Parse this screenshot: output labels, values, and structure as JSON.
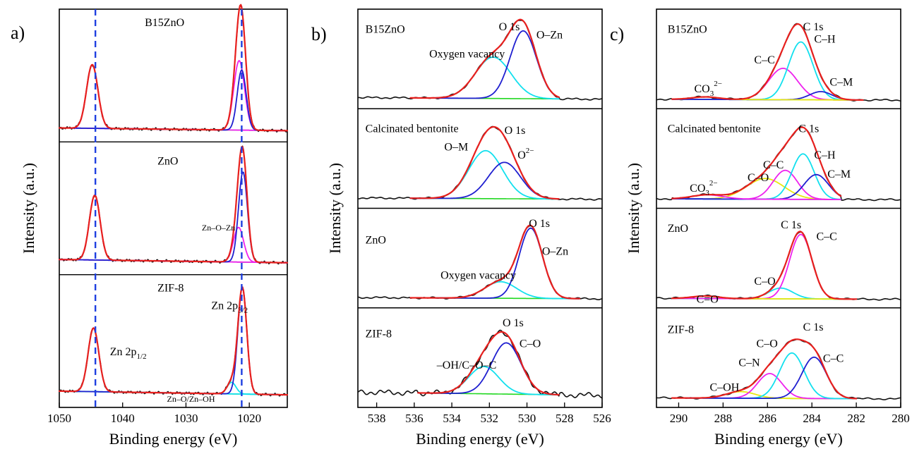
{
  "colors": {
    "red": "#e8201e",
    "blue": "#1f1fd0",
    "cyan": "#12e0ee",
    "green": "#22d822",
    "magenta": "#ee22ee",
    "yellow": "#e8e810",
    "black": "#111111",
    "dashed": "#1f3fe0"
  },
  "chart_data": [
    {
      "type": "line",
      "panel_label": "a)",
      "xlabel": "Binding energy (eV)",
      "ylabel": "Intensity (a.u.)",
      "xlim": [
        1050,
        1014
      ],
      "x_ticks": [
        "1050",
        "1040",
        "1030",
        "1020"
      ],
      "dashed_lines": [
        1044.3,
        1021.2
      ],
      "subplots": [
        {
          "name": "B15ZnO",
          "baseline": 0.06,
          "peaks": [
            {
              "color": "magenta",
              "center": 1044.8,
              "height": 0.55,
              "width": 0.9
            },
            {
              "color": "magenta",
              "center": 1021.6,
              "height": 0.6,
              "width": 0.85
            },
            {
              "color": "blue",
              "center": 1021.2,
              "height": 0.52,
              "width": 0.7
            }
          ],
          "annotations": [
            {
              "text": "B15ZnO",
              "x": 1036.5,
              "y": 1.0
            }
          ]
        },
        {
          "name": "ZnO",
          "baseline": 0.07,
          "peaks": [
            {
              "color": "magenta",
              "center": 1044.4,
              "height": 0.56,
              "width": 0.85
            },
            {
              "color": "magenta",
              "center": 1021.7,
              "height": 0.3,
              "width": 0.8
            },
            {
              "color": "blue",
              "center": 1021.0,
              "height": 0.78,
              "width": 0.7
            }
          ],
          "annotations": [
            {
              "text": "ZnO",
              "x": 1034.5,
              "y": 0.95
            },
            {
              "text": "Zn–O–Zn",
              "x": 1027.5,
              "y": 0.38
            }
          ]
        },
        {
          "name": "ZIF-8",
          "baseline": 0.08,
          "peaks": [
            {
              "color": "cyan",
              "center": 1044.6,
              "height": 0.55,
              "width": 0.85
            },
            {
              "color": "cyan",
              "center": 1022.8,
              "height": 0.1,
              "width": 0.7
            },
            {
              "color": "blue",
              "center": 1021.1,
              "height": 0.92,
              "width": 0.7
            }
          ],
          "annotations": [
            {
              "text": "ZIF-8",
              "x": 1034.5,
              "y": 1.0
            },
            {
              "text": "Zn 2p",
              "sub": "3/2",
              "x": 1026,
              "y": 0.85
            },
            {
              "text": "Zn 2p",
              "sub": "1/2",
              "x": 1042,
              "y": 0.45
            },
            {
              "text": "Zn–O/Zn–OH",
              "x": 1033,
              "y": 0.05
            }
          ]
        }
      ]
    },
    {
      "type": "line",
      "panel_label": "b)",
      "xlabel": "Binding energy (eV)",
      "ylabel": "Intensity (a.u.)",
      "xlim": [
        539,
        526
      ],
      "x_ticks": [
        "538",
        "536",
        "534",
        "532",
        "530",
        "528",
        "526"
      ],
      "subplots": [
        {
          "name": "B15ZnO",
          "baseline": 0.05,
          "range": [
            536.2,
            528.3
          ],
          "peaks": [
            {
              "color": "cyan",
              "center": 531.8,
              "height": 0.5,
              "width": 0.95
            },
            {
              "color": "blue",
              "center": 530.2,
              "height": 0.82,
              "width": 0.7
            }
          ],
          "annotations": [
            {
              "text": "B15ZnO",
              "x": 538.6,
              "y": 0.92
            },
            {
              "text": "O 1s",
              "x": 531.5,
              "y": 0.95
            },
            {
              "text": "O–Zn",
              "x": 529.5,
              "y": 0.85
            },
            {
              "text": "Oxygen vacancy",
              "x": 535.2,
              "y": 0.62
            }
          ]
        },
        {
          "name": "Calcinated bentonite",
          "baseline": 0.04,
          "range": [
            536.2,
            528.3
          ],
          "peaks": [
            {
              "color": "cyan",
              "center": 532.2,
              "height": 0.58,
              "width": 0.9
            },
            {
              "color": "blue",
              "center": 531.2,
              "height": 0.44,
              "width": 0.85
            }
          ],
          "annotations": [
            {
              "text": "Calcinated bentonite",
              "x": 538.6,
              "y": 0.92
            },
            {
              "text": "O 1s",
              "x": 531.2,
              "y": 0.9
            },
            {
              "text": "O–M",
              "x": 534.4,
              "y": 0.7
            },
            {
              "text": "O",
              "sup": "2−",
              "x": 530.5,
              "y": 0.6
            }
          ]
        },
        {
          "name": "ZnO",
          "baseline": 0.04,
          "range": [
            536.2,
            527.2
          ],
          "peaks": [
            {
              "color": "cyan",
              "center": 531.4,
              "height": 0.2,
              "width": 0.85
            },
            {
              "color": "blue",
              "center": 529.8,
              "height": 0.85,
              "width": 0.62
            }
          ],
          "annotations": [
            {
              "text": "ZnO",
              "x": 538.6,
              "y": 0.78
            },
            {
              "text": "O 1s",
              "x": 529.9,
              "y": 0.98
            },
            {
              "text": "O–Zn",
              "x": 529.2,
              "y": 0.64
            },
            {
              "text": "Oxygen vacancy",
              "x": 534.6,
              "y": 0.35
            }
          ]
        },
        {
          "name": "ZIF-8",
          "baseline": 0.1,
          "range": [
            535.8,
            528.3
          ],
          "peaks": [
            {
              "color": "cyan",
              "center": 532.3,
              "height": 0.33,
              "width": 0.8
            },
            {
              "color": "blue",
              "center": 531.1,
              "height": 0.62,
              "width": 0.78
            }
          ],
          "annotations": [
            {
              "text": "ZIF-8",
              "x": 538.6,
              "y": 0.85
            },
            {
              "text": "O 1s",
              "x": 531.3,
              "y": 0.98
            },
            {
              "text": "C–O",
              "x": 530.4,
              "y": 0.73
            },
            {
              "text": "–OH/C–O–C",
              "x": 534.8,
              "y": 0.47
            }
          ]
        }
      ]
    },
    {
      "type": "line",
      "panel_label": "c)",
      "xlabel": "Binding energy (eV)",
      "ylabel": "Intensity (a.u.)",
      "xlim": [
        291,
        280
      ],
      "x_ticks": [
        "290",
        "288",
        "286",
        "284",
        "282",
        "280"
      ],
      "subplots": [
        {
          "name": "B15ZnO",
          "baseline": 0.03,
          "range": [
            290.3,
            281.7
          ],
          "peaks": [
            {
              "color": "magenta",
              "center": 285.3,
              "height": 0.38,
              "width": 0.65
            },
            {
              "color": "cyan",
              "center": 284.5,
              "height": 0.7,
              "width": 0.55
            },
            {
              "color": "blue",
              "center": 283.6,
              "height": 0.1,
              "width": 0.5
            },
            {
              "color": "yellow",
              "center": 288.8,
              "height": 0.03,
              "width": 0.6
            }
          ],
          "annotations": [
            {
              "text": "B15ZnO",
              "x": 290.5,
              "y": 0.92
            },
            {
              "text": "C 1s",
              "x": 284.4,
              "y": 0.95
            },
            {
              "text": "C–H",
              "x": 283.9,
              "y": 0.8
            },
            {
              "text": "C–C",
              "x": 286.6,
              "y": 0.55
            },
            {
              "text": "C–M",
              "x": 283.2,
              "y": 0.28
            },
            {
              "text": "CO",
              "sub": "3",
              "sup": "2−",
              "x": 289.3,
              "y": 0.2
            }
          ]
        },
        {
          "name": "Calcinated bentonite",
          "baseline": 0.03,
          "range": [
            290.3,
            282.7
          ],
          "peaks": [
            {
              "color": "yellow",
              "center": 286.1,
              "height": 0.25,
              "width": 0.85
            },
            {
              "color": "magenta",
              "center": 285.2,
              "height": 0.35,
              "width": 0.55
            },
            {
              "color": "cyan",
              "center": 284.4,
              "height": 0.55,
              "width": 0.5
            },
            {
              "color": "blue",
              "center": 283.8,
              "height": 0.3,
              "width": 0.55
            },
            {
              "color": "magenta",
              "center": 288.7,
              "height": 0.05,
              "width": 0.7
            }
          ],
          "annotations": [
            {
              "text": "Calcinated bentonite",
              "x": 290.5,
              "y": 0.92
            },
            {
              "text": "C 1s",
              "x": 284.6,
              "y": 0.92
            },
            {
              "text": "C–H",
              "x": 283.9,
              "y": 0.6
            },
            {
              "text": "C–M",
              "x": 283.3,
              "y": 0.37
            },
            {
              "text": "C–C",
              "x": 286.2,
              "y": 0.48
            },
            {
              "text": "C–O",
              "x": 286.9,
              "y": 0.33
            },
            {
              "text": "CO",
              "sub": "3",
              "sup": "2−",
              "x": 289.5,
              "y": 0.2
            }
          ]
        },
        {
          "name": "ZnO",
          "baseline": 0.03,
          "range": [
            290.3,
            282.0
          ],
          "peaks": [
            {
              "color": "cyan",
              "center": 285.4,
              "height": 0.13,
              "width": 0.55
            },
            {
              "color": "magenta",
              "center": 284.5,
              "height": 0.78,
              "width": 0.5
            },
            {
              "color": "yellow",
              "center": 288.8,
              "height": 0.03,
              "width": 0.6
            }
          ],
          "annotations": [
            {
              "text": "ZnO",
              "x": 290.5,
              "y": 0.92
            },
            {
              "text": "C 1s",
              "x": 285.4,
              "y": 0.96
            },
            {
              "text": "C–C",
              "x": 283.8,
              "y": 0.82
            },
            {
              "text": "C–O",
              "x": 286.6,
              "y": 0.28
            },
            {
              "text": "C=O",
              "x": 289.2,
              "y": 0.06
            }
          ]
        },
        {
          "name": "ZIF-8",
          "baseline": 0.03,
          "range": [
            290.3,
            282.0
          ],
          "peaks": [
            {
              "color": "yellow",
              "center": 287.2,
              "height": 0.08,
              "width": 0.65
            },
            {
              "color": "magenta",
              "center": 285.9,
              "height": 0.3,
              "width": 0.55
            },
            {
              "color": "cyan",
              "center": 284.9,
              "height": 0.55,
              "width": 0.55
            },
            {
              "color": "blue",
              "center": 283.9,
              "height": 0.5,
              "width": 0.55
            }
          ],
          "annotations": [
            {
              "text": "ZIF-8",
              "x": 290.5,
              "y": 0.9
            },
            {
              "text": "C 1s",
              "x": 284.4,
              "y": 0.93
            },
            {
              "text": "C–O",
              "x": 286.5,
              "y": 0.73
            },
            {
              "text": "C–N",
              "x": 287.3,
              "y": 0.5
            },
            {
              "text": "C–C",
              "x": 283.5,
              "y": 0.55
            },
            {
              "text": "C–OH",
              "x": 288.6,
              "y": 0.2
            }
          ]
        }
      ]
    }
  ]
}
